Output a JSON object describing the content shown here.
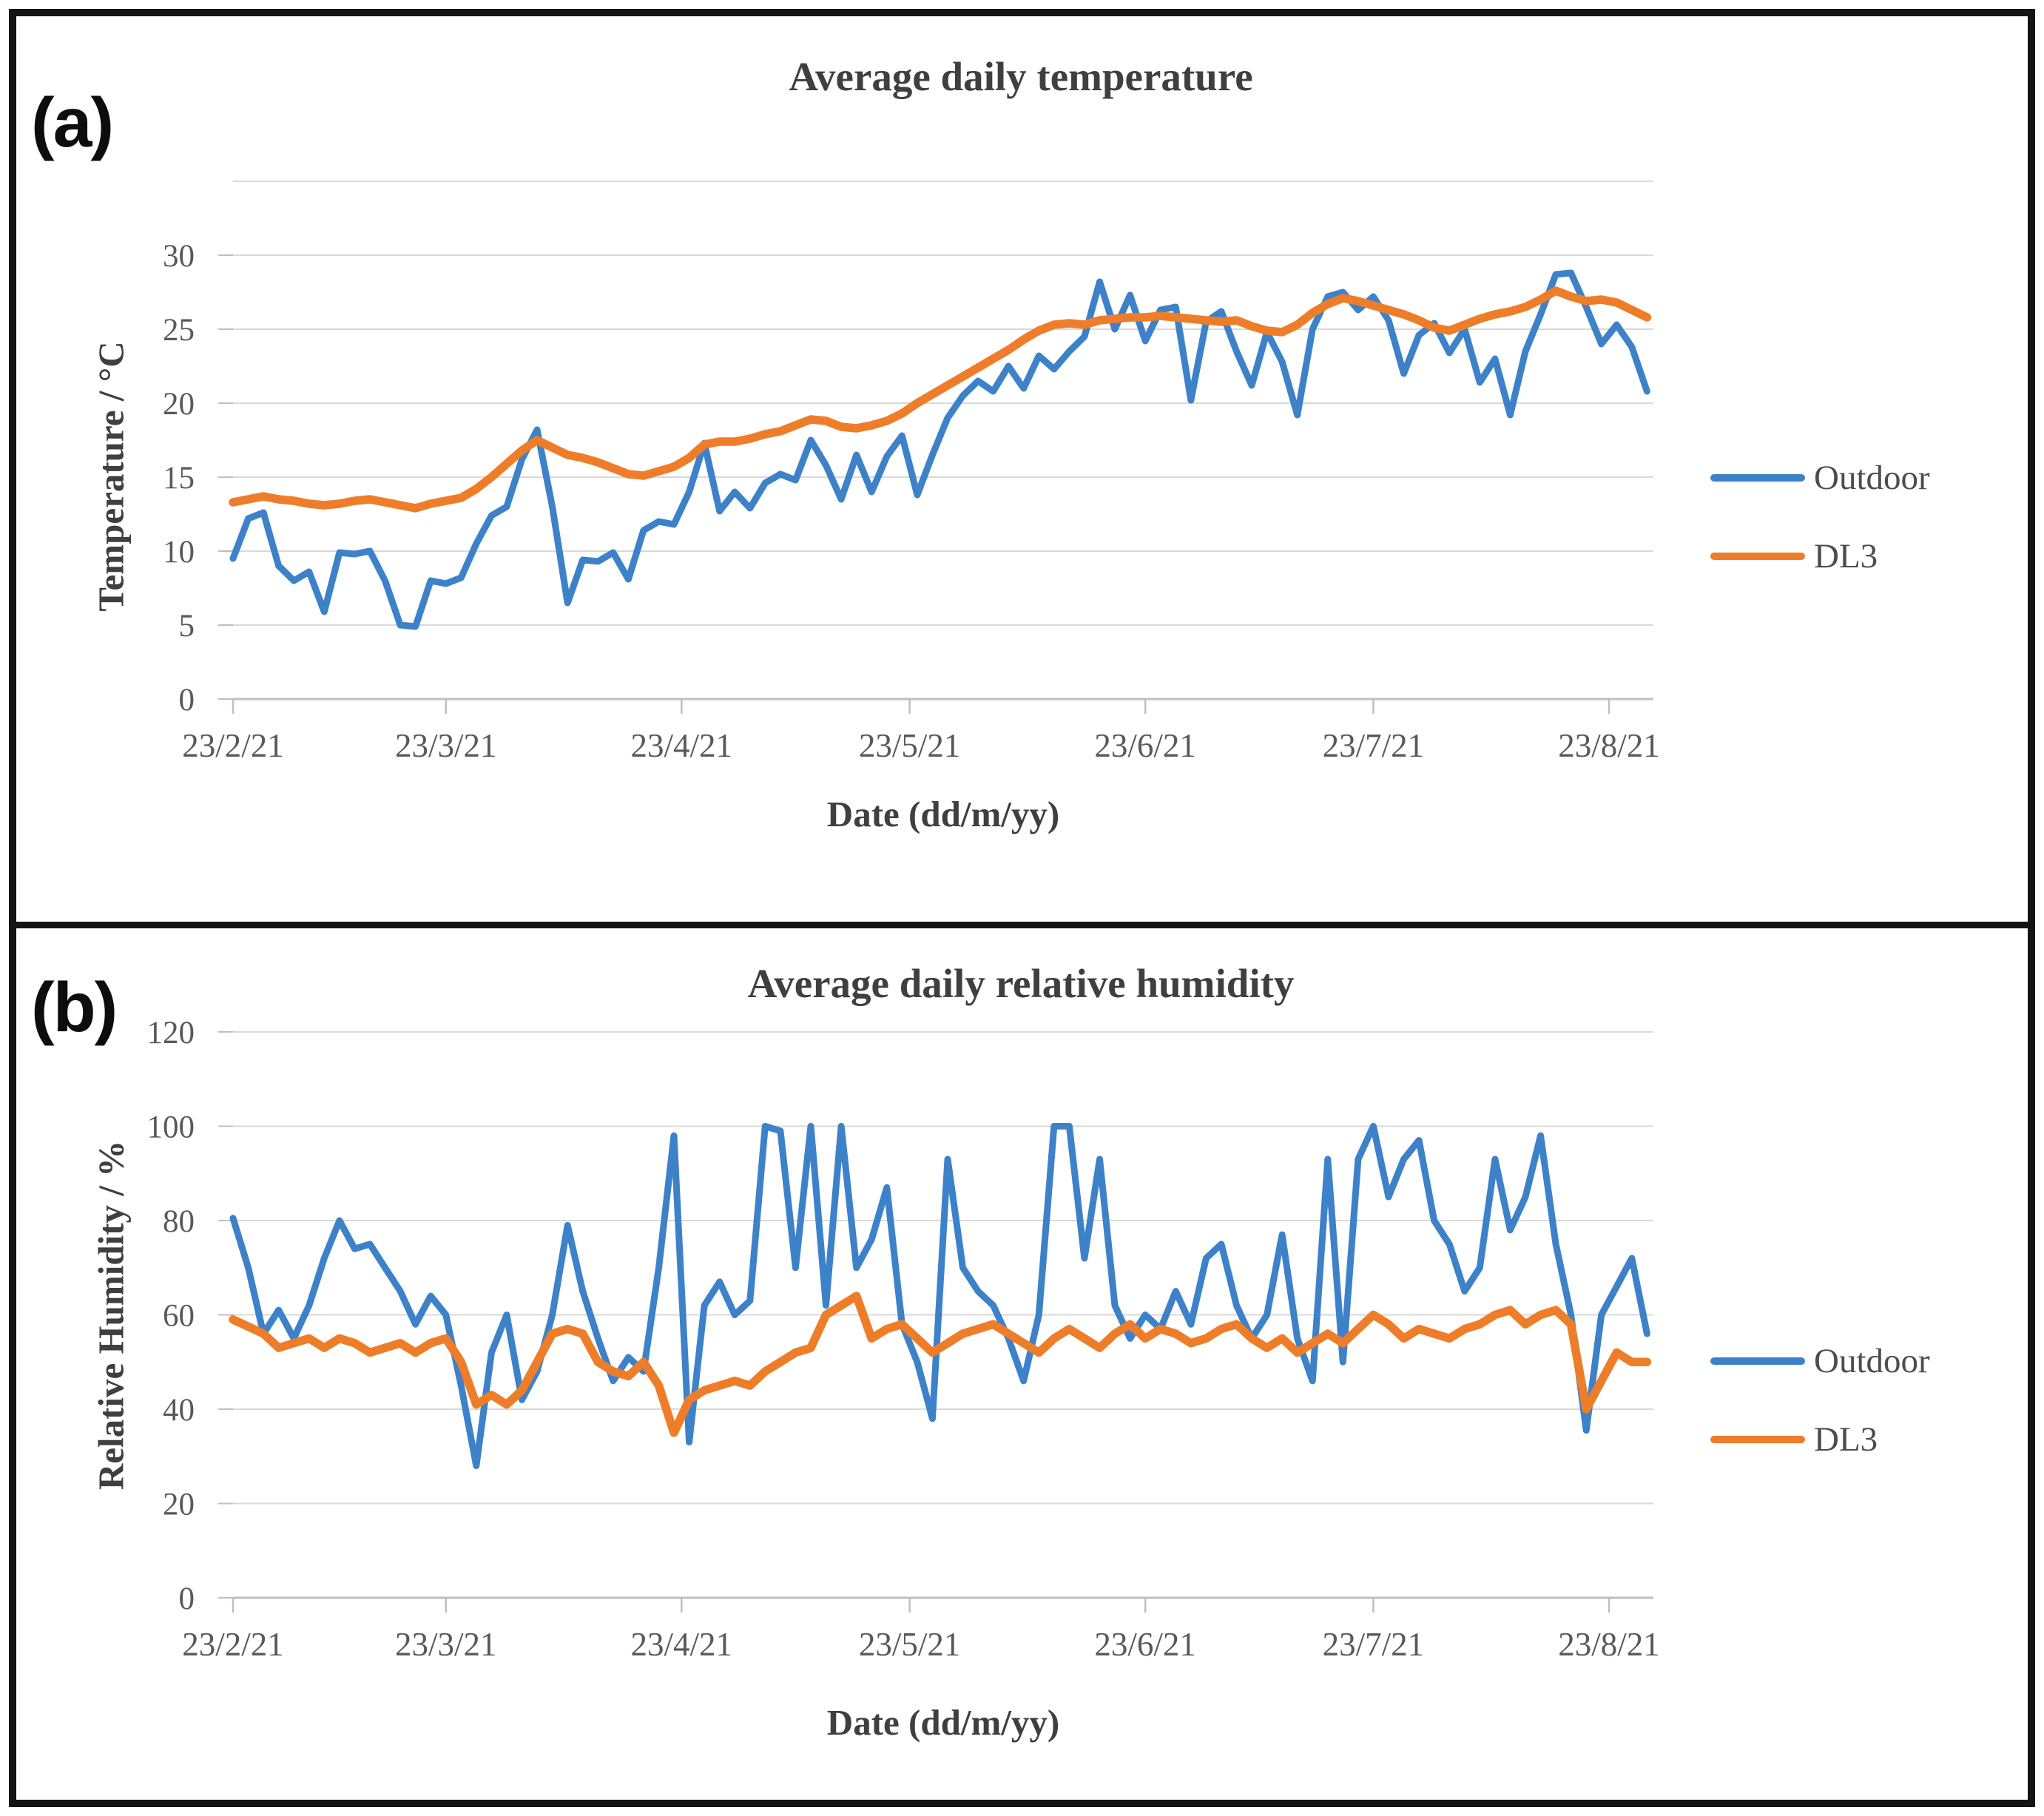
{
  "panel_labels": [
    "(a)",
    "(b)"
  ],
  "colors": {
    "outdoor_blue": "#3D82C8",
    "dl3_orange": "#EE7D2A",
    "gridline": "#D9D9D9",
    "axis_line": "#BFBFBF",
    "tick_text": "#595959",
    "title_text": "#3F3F3F",
    "figure_border": "#141414"
  },
  "chart_data": [
    {
      "type": "line",
      "panel": "(a)",
      "title": "Average daily temperature",
      "xlabel": "Date (dd/m/yy)",
      "ylabel": "Temperature / °C",
      "legend_position": "right",
      "grid": true,
      "x_axis": {
        "tick_labels": [
          "23/2/21",
          "23/3/21",
          "23/4/21",
          "23/5/21",
          "23/6/21",
          "23/7/21",
          "23/8/21"
        ],
        "tick_days": [
          0,
          28,
          59,
          89,
          120,
          150,
          181
        ],
        "days_per_point": 2,
        "start_date": "23/2/21",
        "end_date_approx": "28/8/21"
      },
      "y_axis": {
        "min": 0,
        "max_labeled": 30,
        "max_plotted": 35,
        "step": 5,
        "tick_labels": [
          "0",
          "5",
          "10",
          "15",
          "20",
          "25",
          "30"
        ],
        "unlabeled_top_gridline": true
      },
      "series": [
        {
          "name": "Outdoor",
          "color": "#3D82C8",
          "values": [
            9.5,
            12.2,
            12.6,
            9.0,
            8.0,
            8.6,
            5.9,
            9.9,
            9.8,
            10.0,
            8.0,
            5.0,
            4.9,
            8.0,
            7.8,
            8.2,
            10.5,
            12.4,
            13.0,
            16.2,
            18.2,
            13.0,
            6.5,
            9.4,
            9.3,
            9.9,
            8.1,
            11.4,
            12.0,
            11.8,
            14.0,
            17.3,
            12.7,
            14.0,
            12.9,
            14.6,
            15.2,
            14.8,
            17.5,
            15.8,
            13.5,
            16.5,
            14.0,
            16.4,
            17.8,
            13.8,
            16.5,
            19.0,
            20.5,
            21.5,
            20.8,
            22.5,
            21.0,
            23.2,
            22.3,
            23.5,
            24.5,
            28.2,
            25.0,
            27.3,
            24.2,
            26.3,
            26.5,
            20.2,
            25.5,
            26.2,
            23.5,
            21.2,
            24.8,
            22.8,
            19.2,
            25.0,
            27.2,
            27.5,
            26.3,
            27.2,
            25.6,
            22.0,
            24.6,
            25.4,
            23.4,
            25.0,
            21.4,
            23.0,
            19.2,
            23.5,
            26.0,
            28.7,
            28.8,
            26.5,
            24.0,
            25.3,
            23.8,
            20.8
          ]
        },
        {
          "name": "DL3",
          "color": "#EE7D2A",
          "values": [
            13.3,
            13.5,
            13.7,
            13.5,
            13.4,
            13.2,
            13.1,
            13.2,
            13.4,
            13.5,
            13.3,
            13.1,
            12.9,
            13.2,
            13.4,
            13.6,
            14.2,
            15.0,
            15.9,
            16.8,
            17.5,
            17.0,
            16.5,
            16.3,
            16.0,
            15.6,
            15.2,
            15.1,
            15.4,
            15.7,
            16.3,
            17.2,
            17.4,
            17.4,
            17.6,
            17.9,
            18.1,
            18.5,
            18.9,
            18.8,
            18.4,
            18.3,
            18.5,
            18.8,
            19.3,
            20.0,
            20.6,
            21.2,
            21.8,
            22.4,
            23.0,
            23.6,
            24.3,
            24.9,
            25.3,
            25.4,
            25.3,
            25.6,
            25.7,
            25.8,
            25.8,
            25.9,
            25.8,
            25.7,
            25.6,
            25.5,
            25.6,
            25.2,
            24.9,
            24.8,
            25.3,
            26.1,
            26.7,
            27.1,
            26.9,
            26.6,
            26.3,
            26.0,
            25.6,
            25.1,
            24.9,
            25.3,
            25.7,
            26.0,
            26.2,
            26.5,
            27.0,
            27.6,
            27.2,
            26.9,
            27.0,
            26.8,
            26.3,
            25.8
          ]
        }
      ]
    },
    {
      "type": "line",
      "panel": "(b)",
      "title": "Average daily relative humidity",
      "xlabel": "Date (dd/m/yy)",
      "ylabel": "Relative Humidity / %",
      "legend_position": "right",
      "grid": true,
      "x_axis": {
        "tick_labels": [
          "23/2/21",
          "23/3/21",
          "23/4/21",
          "23/5/21",
          "23/6/21",
          "23/7/21",
          "23/8/21"
        ],
        "tick_days": [
          0,
          28,
          59,
          89,
          120,
          150,
          181
        ],
        "days_per_point": 2,
        "start_date": "23/2/21",
        "end_date_approx": "28/8/21"
      },
      "y_axis": {
        "min": 0,
        "max_labeled": 120,
        "max_plotted": 120,
        "step": 20,
        "tick_labels": [
          "0",
          "20",
          "40",
          "60",
          "80",
          "100",
          "120"
        ],
        "unlabeled_top_gridline": false
      },
      "series": [
        {
          "name": "Outdoor",
          "color": "#3D82C8",
          "values": [
            80.5,
            70,
            56,
            61,
            55,
            62,
            72,
            80,
            74,
            75,
            70,
            65,
            58,
            64,
            60,
            45,
            28,
            52,
            60,
            42,
            48,
            60,
            79,
            65,
            55,
            46,
            51,
            48,
            70,
            98,
            33,
            62,
            67,
            60,
            63,
            100,
            99,
            70,
            100,
            62,
            100,
            70,
            76,
            87,
            58,
            50,
            38,
            93,
            70,
            65,
            62,
            55,
            46,
            60,
            100,
            100,
            72,
            93,
            62,
            55,
            60,
            57,
            65,
            58,
            72,
            75,
            62,
            55,
            60,
            77,
            55,
            46,
            93,
            50,
            93,
            100,
            85,
            93,
            97,
            80,
            75,
            65,
            70,
            93,
            78,
            85,
            98,
            75,
            60,
            35.5,
            60,
            66,
            72,
            56
          ]
        },
        {
          "name": "DL3",
          "color": "#EE7D2A",
          "values": [
            59,
            57.5,
            56,
            53,
            54,
            55,
            53,
            55,
            54,
            52,
            53,
            54,
            52,
            54,
            55,
            50,
            41,
            43,
            41,
            44,
            50,
            56,
            57,
            56,
            50,
            48,
            47,
            50,
            45,
            35,
            42,
            44,
            45,
            46,
            45,
            48,
            50,
            52,
            53,
            60,
            62,
            64,
            55,
            57,
            58,
            55,
            52,
            54,
            56,
            57,
            58,
            56,
            54,
            52,
            55,
            57,
            55,
            53,
            56,
            58,
            55,
            57,
            56,
            54,
            55,
            57,
            58,
            55,
            53,
            55,
            52,
            54,
            56,
            54,
            57,
            60,
            58,
            55,
            57,
            56,
            55,
            57,
            58,
            60,
            61,
            58,
            60,
            61,
            58,
            40,
            46,
            52,
            50,
            50
          ]
        }
      ]
    }
  ]
}
